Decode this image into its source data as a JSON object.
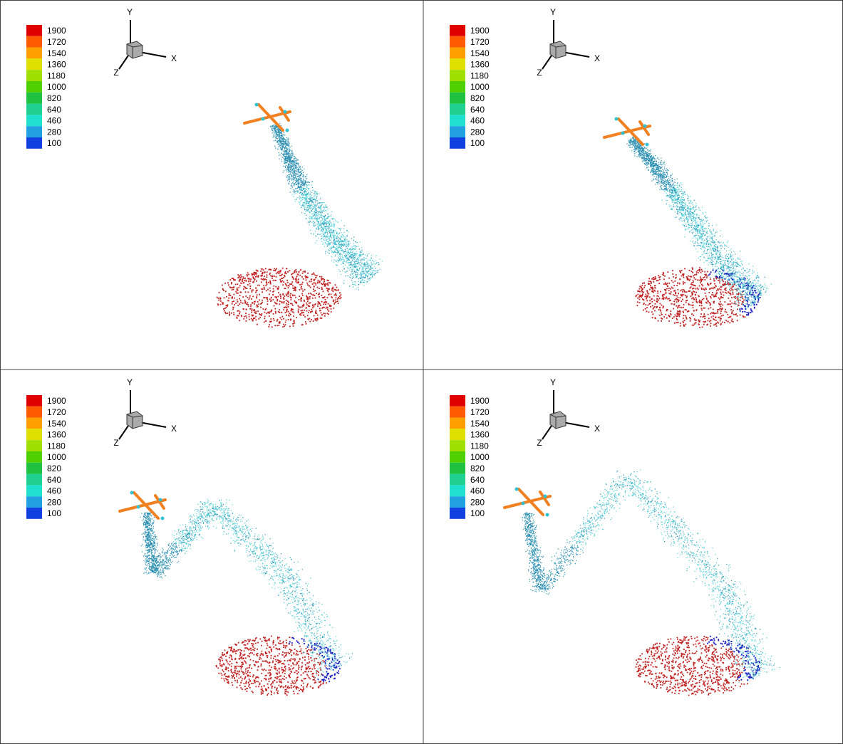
{
  "panels": [
    {
      "legend": {
        "levels": [
          1900,
          1720,
          1540,
          1360,
          1180,
          1000,
          820,
          640,
          460,
          280,
          100
        ],
        "colors": [
          "#e00000",
          "#ff5a00",
          "#ffa000",
          "#e0e000",
          "#a0e000",
          "#50d000",
          "#20c040",
          "#20d090",
          "#20e0d0",
          "#20a0e0",
          "#1040e0"
        ]
      },
      "axes": {
        "x": "X",
        "y": "Y",
        "z": "Z"
      }
    },
    {
      "legend": {
        "levels": [
          1900,
          1720,
          1540,
          1360,
          1180,
          1000,
          820,
          640,
          460,
          280,
          100
        ],
        "colors": [
          "#e00000",
          "#ff5a00",
          "#ffa000",
          "#e0e000",
          "#a0e000",
          "#50d000",
          "#20c040",
          "#20d090",
          "#20e0d0",
          "#20a0e0",
          "#1040e0"
        ]
      },
      "axes": {
        "x": "X",
        "y": "Y",
        "z": "Z"
      }
    },
    {
      "legend": {
        "levels": [
          1900,
          1720,
          1540,
          1360,
          1180,
          1000,
          820,
          640,
          460,
          280,
          100
        ],
        "colors": [
          "#e00000",
          "#ff5a00",
          "#ffa000",
          "#e0e000",
          "#a0e000",
          "#50d000",
          "#20c040",
          "#20d090",
          "#20e0d0",
          "#20a0e0",
          "#1040e0"
        ]
      },
      "axes": {
        "x": "X",
        "y": "Y",
        "z": "Z"
      }
    },
    {
      "legend": {
        "levels": [
          1900,
          1720,
          1540,
          1360,
          1180,
          1000,
          820,
          640,
          460,
          280,
          100
        ],
        "colors": [
          "#e00000",
          "#ff5a00",
          "#ffa000",
          "#e0e000",
          "#a0e000",
          "#50d000",
          "#20c040",
          "#20d090",
          "#20e0d0",
          "#20a0e0",
          "#1040e0"
        ]
      },
      "axes": {
        "x": "X",
        "y": "Y",
        "z": "Z"
      }
    }
  ]
}
